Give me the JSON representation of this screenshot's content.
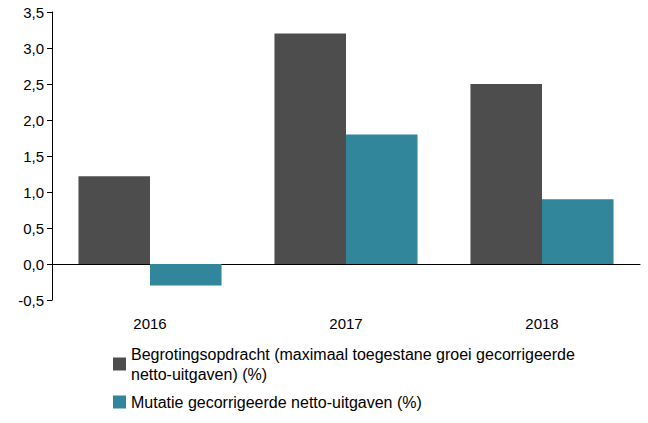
{
  "chart_data": {
    "type": "bar",
    "categories": [
      "2016",
      "2017",
      "2018"
    ],
    "series": [
      {
        "name": "Begrotingsopdracht (maximaal toegestane groei gecorrigeerde netto-uitgaven) (%)",
        "color": "#4d4d4d",
        "values": [
          1.22,
          3.2,
          2.5
        ]
      },
      {
        "name": "Mutatie gecorrigeerde netto-uitgaven (%)",
        "color": "#31869b",
        "values": [
          -0.3,
          1.8,
          0.9
        ]
      }
    ],
    "ylim": [
      -0.5,
      3.5
    ],
    "yticks": [
      {
        "value": -0.5,
        "label": "-0,5"
      },
      {
        "value": 0,
        "label": "0,0"
      },
      {
        "value": 0.5,
        "label": "0,5"
      },
      {
        "value": 1,
        "label": "1,0"
      },
      {
        "value": 1.5,
        "label": "1,5"
      },
      {
        "value": 2,
        "label": "2,0"
      },
      {
        "value": 2.5,
        "label": "2,5"
      },
      {
        "value": 3,
        "label": "3,0"
      },
      {
        "value": 3.5,
        "label": "3,5"
      }
    ],
    "grid": false,
    "legend": "bottom"
  }
}
